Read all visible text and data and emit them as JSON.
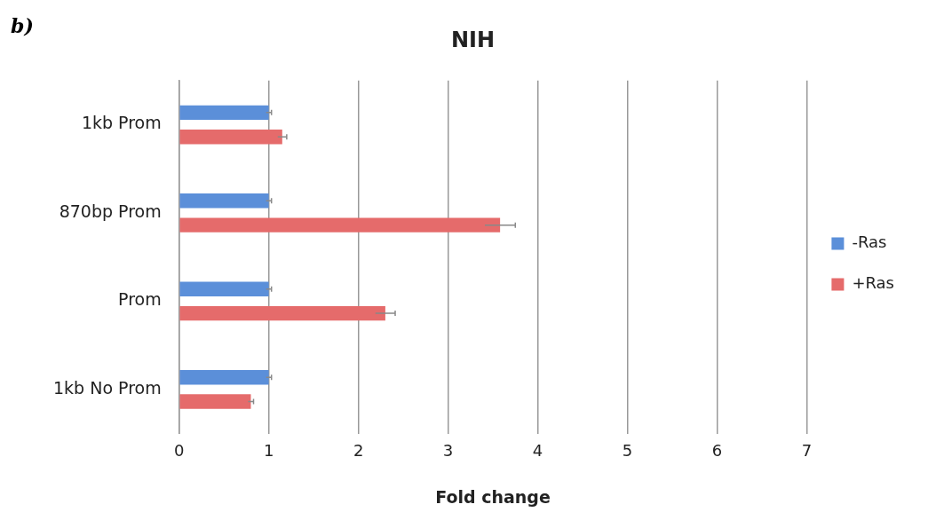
{
  "chart_data": {
    "type": "bar",
    "orientation": "horizontal",
    "title": "NIH",
    "xlabel": "Fold change",
    "annotations": [
      "b)"
    ],
    "categories": [
      "1kb Prom",
      "870bp Prom",
      "Prom",
      "1kb No Prom"
    ],
    "series": [
      {
        "name": "-Ras",
        "color": "#5b8fd9",
        "values": [
          1.0,
          1.0,
          1.0,
          1.0
        ],
        "errors": [
          0.03,
          0.03,
          0.03,
          0.03
        ]
      },
      {
        "name": "+Ras",
        "color": "#e56b6b",
        "values": [
          1.15,
          3.58,
          2.3,
          0.8
        ],
        "errors": [
          0.05,
          0.17,
          0.11,
          0.03
        ]
      }
    ],
    "xlim": [
      0,
      7
    ],
    "xticks": [
      0,
      1,
      2,
      3,
      4,
      5,
      6,
      7
    ],
    "grid": "x",
    "legend": "right"
  }
}
